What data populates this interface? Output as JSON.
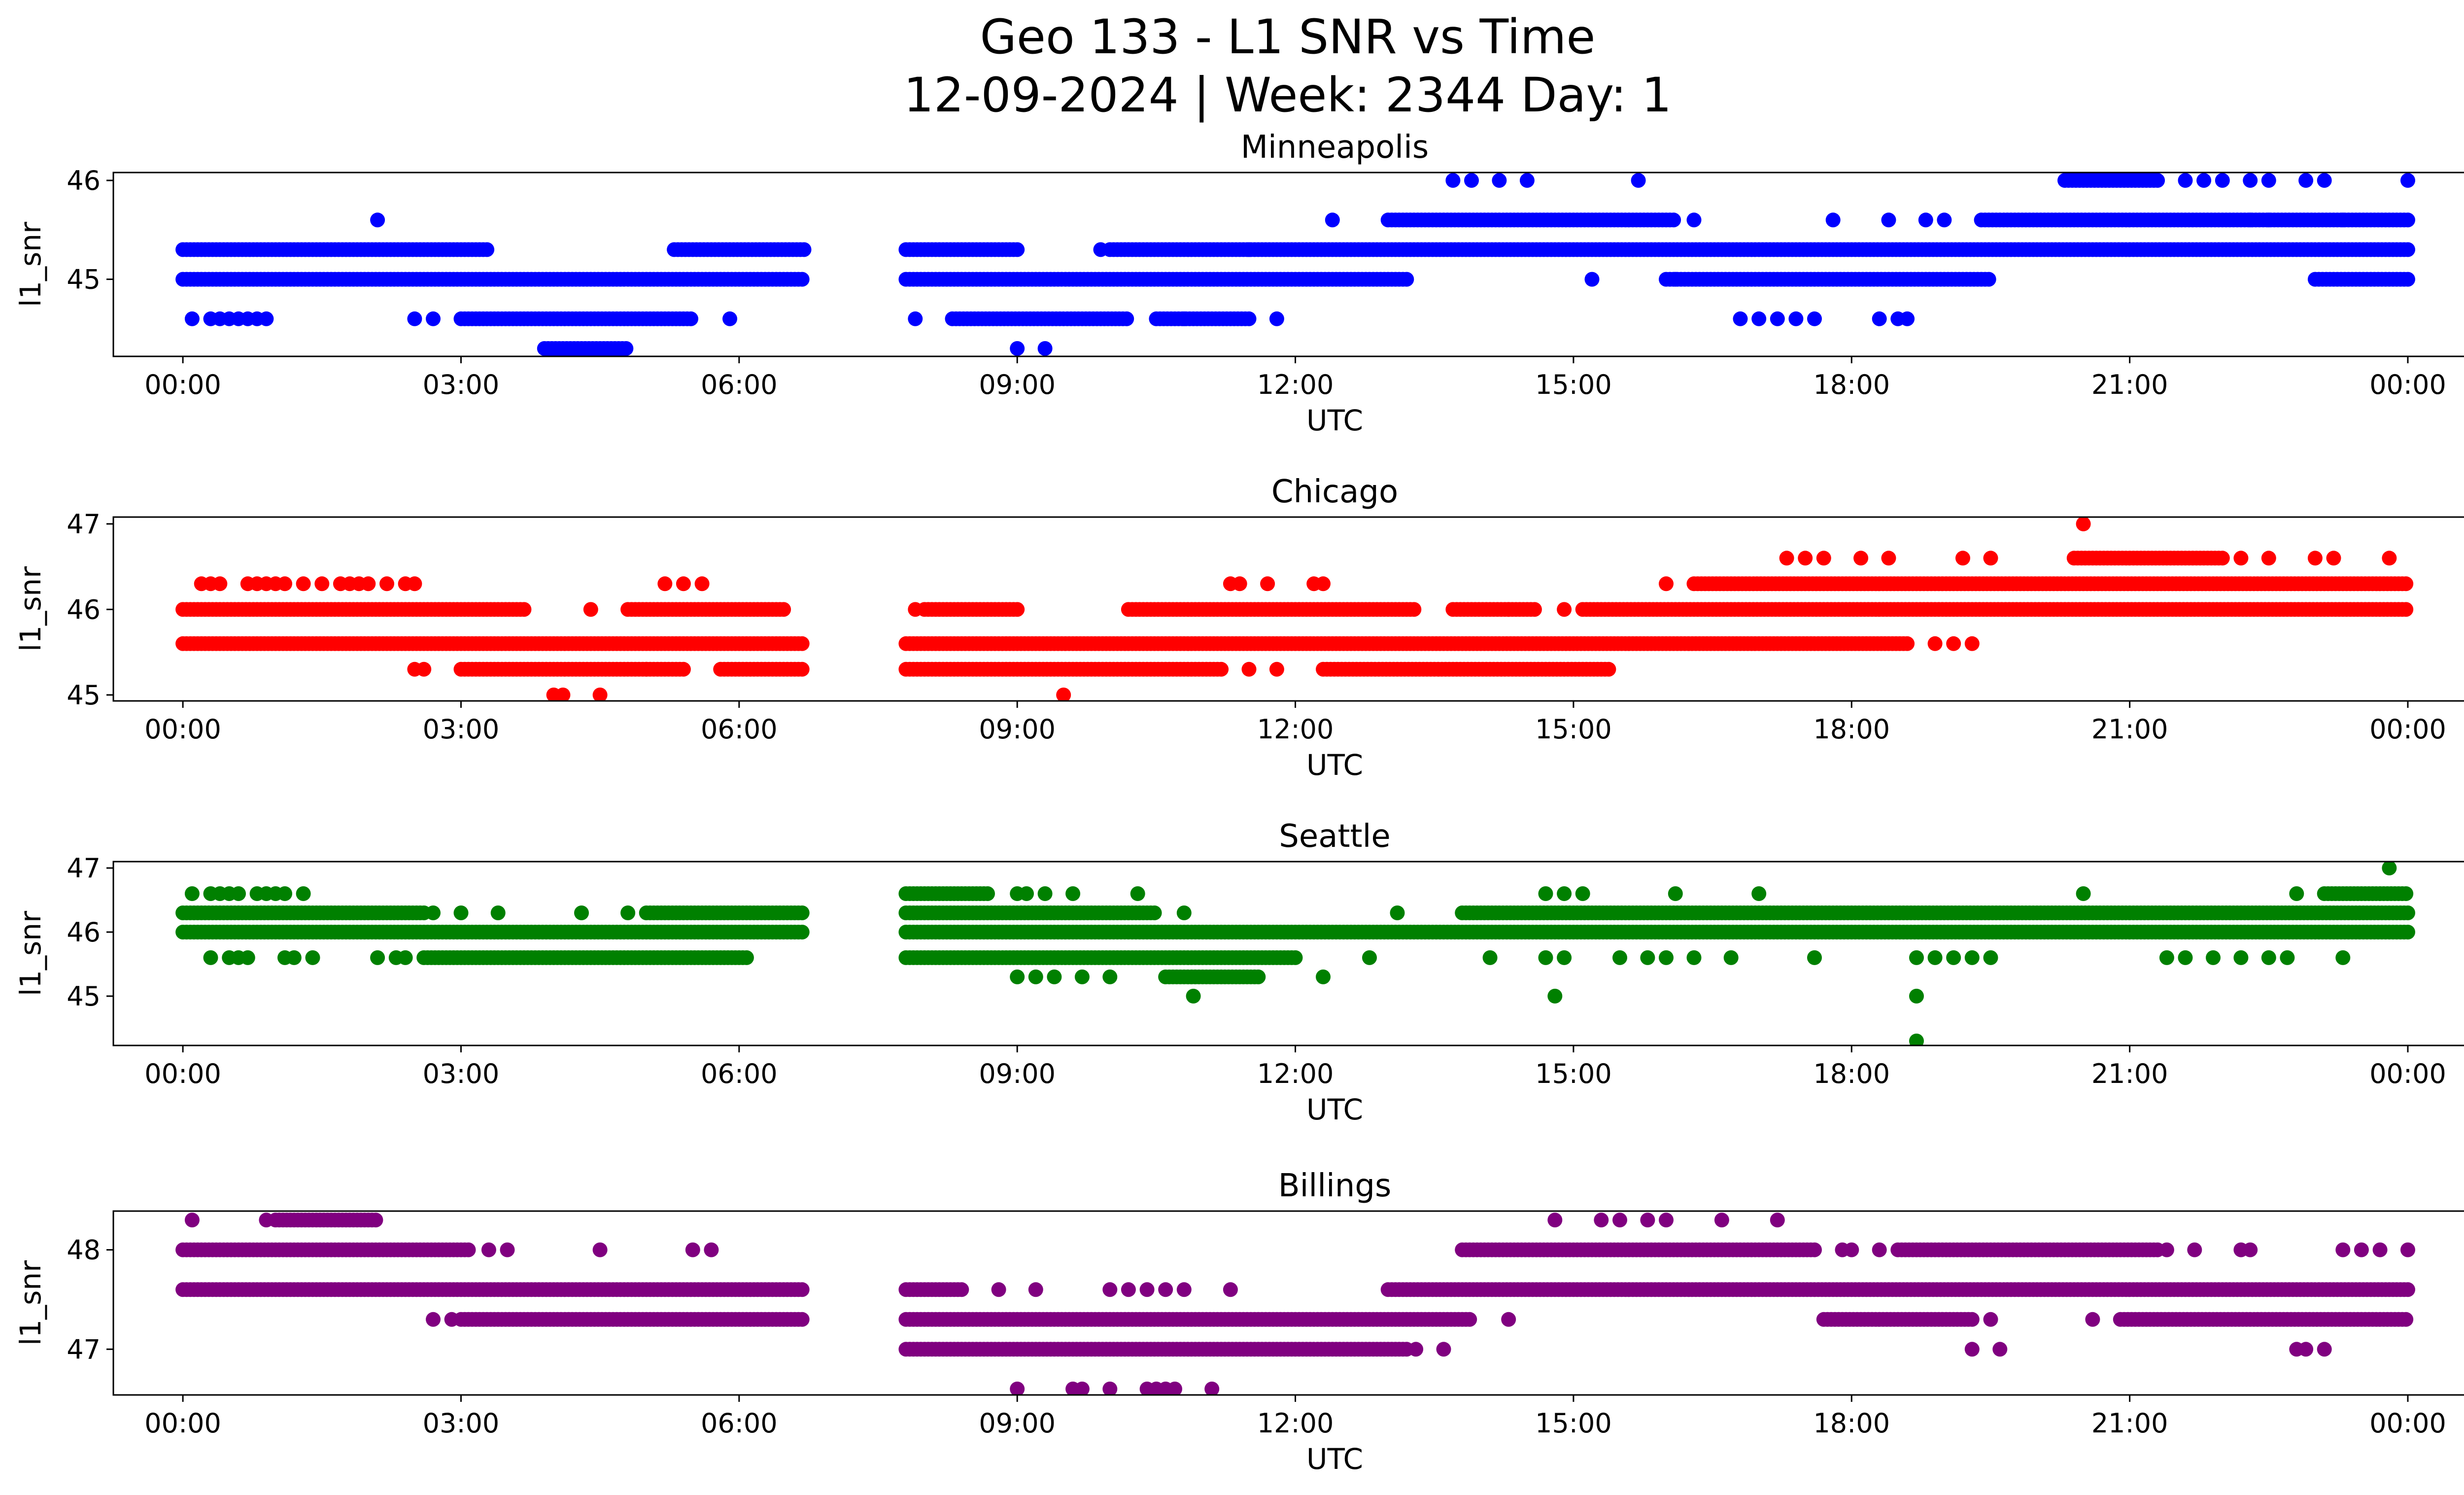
{
  "title_line1": "Geo 133 - L1 SNR vs Time",
  "title_line2": "12-09-2024 | Week: 2344 Day: 1",
  "chart_data": [
    {
      "type": "scatter",
      "title": "Minneapolis",
      "xlabel": "UTC",
      "ylabel": "l1_snr",
      "color": "#0000ff",
      "x_ticks": [
        "00:00",
        "03:00",
        "06:00",
        "09:00",
        "12:00",
        "15:00",
        "18:00",
        "21:00",
        "00:00"
      ],
      "xlim": [
        -0.75,
        25.6
      ],
      "ylim": [
        44.22,
        46.08
      ],
      "y_ticks": [
        45,
        46
      ],
      "levels": [
        {
          "y": 45.3,
          "segments": [
            [
              0.0,
              3.3
            ],
            [
              5.3,
              6.7
            ],
            [
              7.8,
              9.0
            ],
            [
              10.0,
              24.0
            ]
          ]
        },
        {
          "y": 45.0,
          "segments": [
            [
              0.0,
              6.7
            ],
            [
              7.8,
              13.2
            ],
            [
              16.0,
              19.5
            ],
            [
              23.0,
              24.0
            ]
          ]
        },
        {
          "y": 44.6,
          "segments": [
            [
              3.0,
              5.5
            ],
            [
              8.3,
              10.2
            ],
            [
              10.5,
              11.5
            ]
          ]
        },
        {
          "y": 45.6,
          "segments": [
            [
              13.0,
              16.1
            ],
            [
              19.4,
              24.0
            ]
          ]
        },
        {
          "y": 44.3,
          "segments": [
            [
              3.9,
              4.8
            ]
          ]
        },
        {
          "y": 46.0,
          "segments": [
            [
              20.3,
              21.3
            ]
          ]
        }
      ],
      "sparse_points": [
        {
          "y": 44.6,
          "x": [
            0.1,
            0.3,
            0.4,
            0.5,
            0.6,
            0.7,
            0.8,
            0.9,
            2.5,
            2.7,
            5.9,
            7.9,
            10.8,
            11.8,
            16.8,
            17.0,
            17.2,
            17.4,
            17.6,
            18.3,
            18.5,
            18.6
          ]
        },
        {
          "y": 45.6,
          "x": [
            2.1,
            12.4,
            16.3,
            17.8,
            18.4,
            18.8,
            19.0,
            22.3,
            22.5,
            23.3
          ]
        },
        {
          "y": 45.3,
          "x": [
            9.9,
            11.5
          ]
        },
        {
          "y": 45.0,
          "x": [
            15.2,
            16.1
          ]
        },
        {
          "y": 44.3,
          "x": [
            9.0,
            9.3
          ]
        },
        {
          "y": 46.0,
          "x": [
            13.7,
            13.9,
            14.2,
            14.5,
            15.7,
            21.6,
            21.8,
            22.0,
            22.3,
            22.5,
            22.9,
            23.1,
            24.0
          ]
        }
      ]
    },
    {
      "type": "scatter",
      "title": "Chicago",
      "xlabel": "UTC",
      "ylabel": "l1_snr",
      "color": "#ff0000",
      "x_ticks": [
        "00:00",
        "03:00",
        "06:00",
        "09:00",
        "12:00",
        "15:00",
        "18:00",
        "21:00",
        "00:00"
      ],
      "xlim": [
        -0.75,
        25.6
      ],
      "ylim": [
        44.93,
        47.08
      ],
      "y_ticks": [
        45,
        46,
        47
      ],
      "levels": [
        {
          "y": 46.0,
          "segments": [
            [
              0.0,
              3.7
            ],
            [
              4.8,
              6.5
            ],
            [
              8.0,
              9.0
            ],
            [
              10.2,
              13.3
            ],
            [
              13.7,
              14.6
            ],
            [
              15.1,
              24.0
            ]
          ]
        },
        {
          "y": 45.6,
          "segments": [
            [
              0.0,
              6.7
            ],
            [
              7.8,
              18.6
            ]
          ]
        },
        {
          "y": 45.3,
          "segments": [
            [
              3.0,
              5.4
            ],
            [
              5.8,
              6.7
            ],
            [
              7.8,
              11.2
            ],
            [
              12.3,
              15.4
            ]
          ]
        },
        {
          "y": 46.3,
          "segments": [
            [
              16.3,
              24.0
            ]
          ]
        },
        {
          "y": 46.6,
          "segments": [
            [
              20.4,
              22.0
            ]
          ]
        }
      ],
      "sparse_points": [
        {
          "y": 46.3,
          "x": [
            0.2,
            0.3,
            0.4,
            0.7,
            0.8,
            0.9,
            1.0,
            1.1,
            1.3,
            1.5,
            1.7,
            1.8,
            1.9,
            2.0,
            2.2,
            2.4,
            2.5,
            5.2,
            5.4,
            5.6,
            11.3,
            11.4,
            11.7,
            12.2,
            12.3,
            16.0
          ]
        },
        {
          "y": 46.6,
          "x": [
            17.3,
            17.5,
            17.7,
            18.1,
            18.4,
            19.2,
            19.5,
            22.2,
            22.5,
            23.0,
            23.2,
            23.8
          ]
        },
        {
          "y": 46.0,
          "x": [
            4.4,
            7.9,
            14.3,
            14.9
          ]
        },
        {
          "y": 45.6,
          "x": [
            18.9,
            19.1,
            19.3
          ]
        },
        {
          "y": 45.3,
          "x": [
            2.5,
            2.6,
            5.0,
            11.5,
            11.8
          ]
        },
        {
          "y": 45.0,
          "x": [
            4.0,
            4.1,
            4.5,
            9.5
          ]
        },
        {
          "y": 47.0,
          "x": [
            20.5
          ]
        }
      ]
    },
    {
      "type": "scatter",
      "title": "Seattle",
      "xlabel": "UTC",
      "ylabel": "l1_snr",
      "color": "#008000",
      "x_ticks": [
        "00:00",
        "03:00",
        "06:00",
        "09:00",
        "12:00",
        "15:00",
        "18:00",
        "21:00",
        "00:00"
      ],
      "xlim": [
        -0.75,
        25.6
      ],
      "ylim": [
        44.23,
        47.1
      ],
      "y_ticks": [
        45,
        46,
        47
      ],
      "levels": [
        {
          "y": 46.3,
          "segments": [
            [
              0.0,
              2.6
            ],
            [
              5.0,
              6.7
            ],
            [
              7.8,
              10.5
            ],
            [
              13.8,
              24.0
            ]
          ]
        },
        {
          "y": 46.0,
          "segments": [
            [
              0.0,
              6.7
            ],
            [
              7.8,
              24.0
            ]
          ]
        },
        {
          "y": 45.6,
          "segments": [
            [
              2.6,
              6.1
            ],
            [
              7.8,
              12.0
            ]
          ]
        },
        {
          "y": 46.6,
          "segments": [
            [
              7.8,
              8.7
            ],
            [
              23.1,
              24.0
            ]
          ]
        },
        {
          "y": 45.3,
          "segments": [
            [
              10.6,
              11.6
            ]
          ]
        }
      ],
      "sparse_points": [
        {
          "y": 46.6,
          "x": [
            0.1,
            0.3,
            0.4,
            0.5,
            0.6,
            0.8,
            0.9,
            1.0,
            1.1,
            1.3,
            9.0,
            9.1,
            9.3,
            9.6,
            10.3,
            14.7,
            14.9,
            15.1,
            16.1,
            17.0,
            20.5,
            22.8
          ]
        },
        {
          "y": 45.6,
          "x": [
            0.3,
            0.5,
            0.6,
            0.7,
            1.1,
            1.2,
            1.4,
            2.1,
            2.3,
            2.4,
            12.8,
            14.1,
            14.7,
            14.9,
            15.5,
            15.8,
            16.0,
            16.3,
            16.7,
            17.6,
            18.7,
            18.9,
            19.1,
            19.3,
            19.5,
            21.4,
            21.6,
            21.9,
            22.2,
            22.5,
            22.7,
            23.3
          ]
        },
        {
          "y": 46.3,
          "x": [
            2.7,
            3.0,
            3.4,
            4.3,
            4.8,
            10.8,
            13.1
          ]
        },
        {
          "y": 45.3,
          "x": [
            9.0,
            9.2,
            9.4,
            9.7,
            10.0,
            12.3
          ]
        },
        {
          "y": 45.0,
          "x": [
            10.9,
            14.8,
            18.7
          ]
        },
        {
          "y": 44.3,
          "x": [
            18.7
          ]
        },
        {
          "y": 47.0,
          "x": [
            23.8
          ]
        }
      ]
    },
    {
      "type": "scatter",
      "title": "Billings",
      "xlabel": "UTC",
      "ylabel": "l1_snr",
      "color": "#800080",
      "x_ticks": [
        "00:00",
        "03:00",
        "06:00",
        "09:00",
        "12:00",
        "15:00",
        "18:00",
        "21:00",
        "00:00"
      ],
      "xlim": [
        -0.75,
        25.6
      ],
      "ylim": [
        46.54,
        48.39
      ],
      "y_ticks": [
        47,
        48
      ],
      "levels": [
        {
          "y": 48.0,
          "segments": [
            [
              0.0,
              3.1
            ],
            [
              13.8,
              17.6
            ],
            [
              18.5,
              21.3
            ]
          ]
        },
        {
          "y": 47.6,
          "segments": [
            [
              0.0,
              6.7
            ],
            [
              7.8,
              8.4
            ],
            [
              13.0,
              24.0
            ]
          ]
        },
        {
          "y": 47.3,
          "segments": [
            [
              3.0,
              6.7
            ],
            [
              7.8,
              13.9
            ],
            [
              17.7,
              19.3
            ],
            [
              20.9,
              24.0
            ]
          ]
        },
        {
          "y": 47.0,
          "segments": [
            [
              7.8,
              13.2
            ]
          ]
        },
        {
          "y": 48.3,
          "segments": [
            [
              1.0,
              2.1
            ]
          ]
        }
      ],
      "sparse_points": [
        {
          "y": 48.3,
          "x": [
            0.1,
            0.9,
            14.8,
            15.3,
            15.5,
            15.8,
            16.0,
            16.6,
            17.2
          ]
        },
        {
          "y": 48.0,
          "x": [
            3.3,
            3.5,
            4.5,
            5.5,
            5.7,
            17.9,
            18.0,
            18.3,
            21.4,
            21.7,
            22.2,
            22.3,
            23.3,
            23.5,
            23.7,
            24.0
          ]
        },
        {
          "y": 47.6,
          "x": [
            8.8,
            9.2,
            10.0,
            10.2,
            10.4,
            10.6,
            10.8,
            11.3
          ]
        },
        {
          "y": 47.3,
          "x": [
            2.7,
            2.9,
            14.3,
            19.5,
            20.6
          ]
        },
        {
          "y": 47.0,
          "x": [
            13.3,
            13.6,
            19.3,
            19.6,
            22.8,
            22.9,
            23.1
          ]
        },
        {
          "y": 46.6,
          "x": [
            9.0,
            9.6,
            9.7,
            10.0,
            10.4,
            10.5,
            10.6,
            10.7,
            11.1
          ]
        }
      ]
    }
  ]
}
